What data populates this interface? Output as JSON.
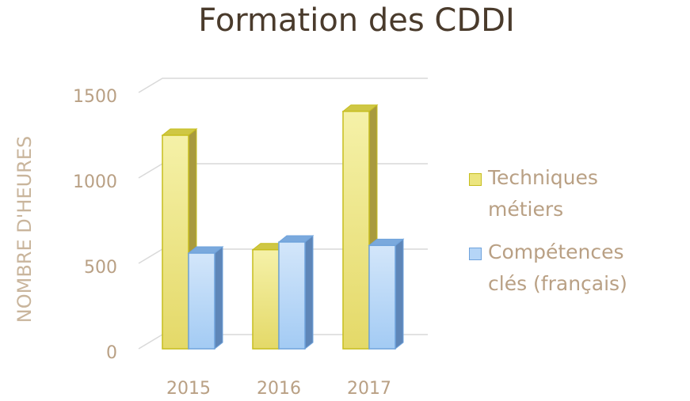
{
  "chart_data": {
    "type": "bar3d",
    "title": "Formation des CDDI",
    "y_label": "NOMBRE D'HEURES",
    "categories": [
      "2015",
      "2016",
      "2017"
    ],
    "series": [
      {
        "name": "Techniques métiers",
        "color": "#ece57f",
        "values": [
          1250,
          580,
          1390
        ]
      },
      {
        "name": "Compétences clés (français)",
        "color": "#b5d5f7",
        "values": [
          560,
          625,
          605
        ]
      }
    ],
    "ylim": [
      0,
      1500
    ],
    "yticks": [
      0,
      500,
      1000,
      1500
    ],
    "grid": true,
    "legend": "right"
  }
}
